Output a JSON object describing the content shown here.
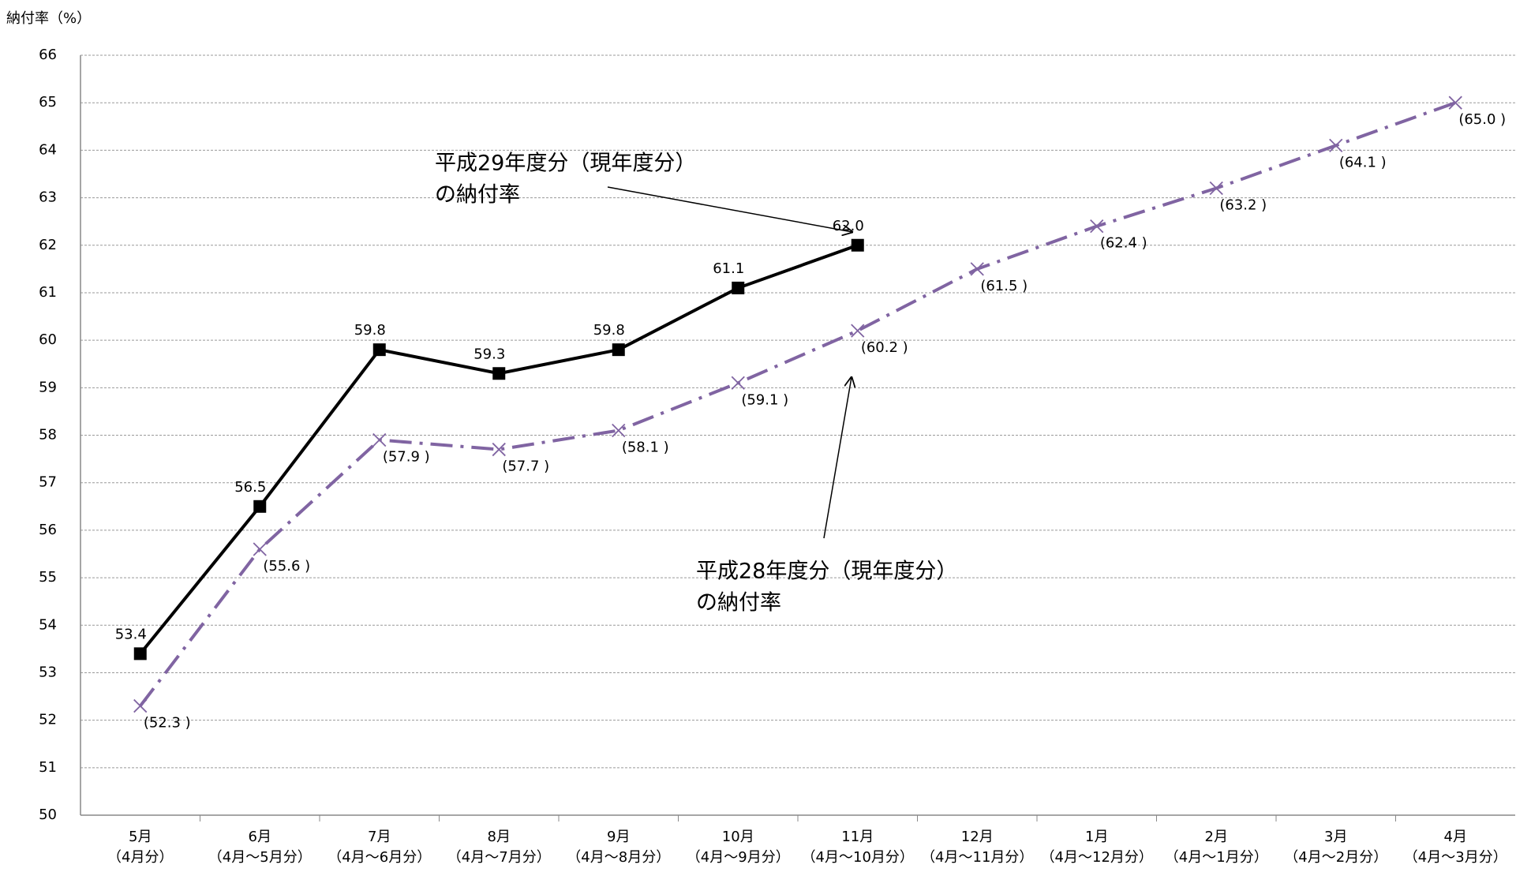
{
  "chart_data": {
    "type": "line",
    "y_axis_label": "納付率（%）",
    "categories": [
      "5月",
      "6月",
      "7月",
      "8月",
      "9月",
      "10月",
      "11月",
      "12月",
      "1月",
      "2月",
      "3月",
      "4月"
    ],
    "category_periods": [
      "（4月分）",
      "（4月～5月分）",
      "（4月～6月分）",
      "（4月～7月分）",
      "（4月～8月分）",
      "（4月～9月分）",
      "（4月～10月分）",
      "（4月～11月分）",
      "（4月～12月分）",
      "（4月～1月分）",
      "（4月～2月分）",
      "（4月～3月分）"
    ],
    "series": [
      {
        "color": "#000000",
        "marker": "square",
        "line": "solid",
        "values": [
          53.4,
          56.5,
          59.8,
          59.3,
          59.8,
          61.1,
          62.0,
          null,
          null,
          null,
          null,
          null
        ],
        "value_labels": [
          "53.4",
          "56.5",
          "59.8",
          "59.3",
          "59.8",
          "61.1",
          "62.0",
          null,
          null,
          null,
          null,
          null
        ]
      },
      {
        "color": "#8064a2",
        "marker": "x",
        "line": "dashdot",
        "values": [
          52.3,
          55.6,
          57.9,
          57.7,
          58.1,
          59.1,
          60.2,
          61.5,
          62.4,
          63.2,
          64.1,
          65.0
        ],
        "value_labels": [
          "(52.3 )",
          "(55.6 )",
          "(57.9 )",
          "(57.7 )",
          "(58.1 )",
          "(59.1 )",
          "(60.2 )",
          "(61.5 )",
          "(62.4 )",
          "(63.2 )",
          "(64.1 )",
          "(65.0 )"
        ]
      }
    ],
    "annotations": [
      {
        "lines": [
          "平成29年度分（現年度分）",
          "の納付率"
        ],
        "series": 0
      },
      {
        "lines": [
          "平成28年度分（現年度分）",
          "の納付率"
        ],
        "series": 1
      }
    ],
    "ylim": [
      50,
      66
    ],
    "yticks": [
      50,
      51,
      52,
      53,
      54,
      55,
      56,
      57,
      58,
      59,
      60,
      61,
      62,
      63,
      64,
      65,
      66
    ],
    "grid": true
  }
}
